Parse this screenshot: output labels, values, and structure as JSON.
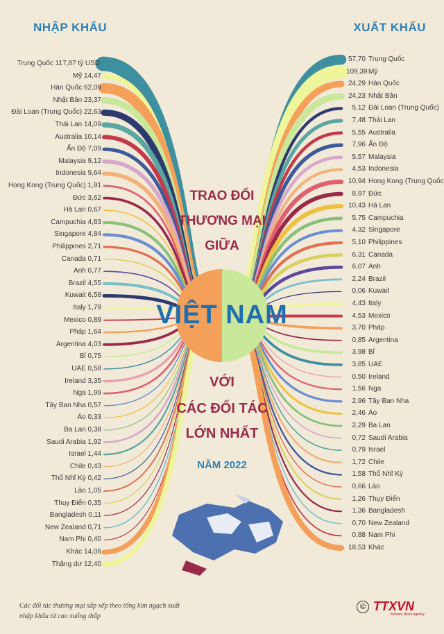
{
  "header": {
    "import_label": "NHẬP KHẨU",
    "export_label": "XUẤT KHẨU"
  },
  "title": {
    "line1": "TRAO ĐỔI",
    "line2": "THƯƠNG MẠI",
    "line3": "GIỮA",
    "line4": "VIỆT NAM",
    "line5": "VỚI",
    "line6": "CÁC ĐỐI TÁC",
    "line7": "LỚN NHẤT",
    "line8": "NĂM 2022"
  },
  "footnote": "Các đối tác thương mại sắp xếp theo tổng kim ngạch xuất nhập khẩu từ cao xuống thấp",
  "logo": {
    "text": "TTXVN",
    "sub": "Vietnam News Agency",
    "copyright": "©"
  },
  "colors": {
    "background": "#f2ead9",
    "teal": "#3e8fa0",
    "yellow": "#eef59a",
    "orange": "#f5a05a",
    "light_green": "#c9e89a",
    "navy": "#2d3a6e",
    "red": "#c43a4a",
    "title": "#9a2a4a",
    "blue": "#1f6fb0"
  },
  "chart_data": {
    "type": "flow",
    "unit": "tỷ USD",
    "imports": [
      {
        "partner": "Trung Quốc",
        "value": 117.87,
        "label": "Trung Quốc 117,87 tỷ USD",
        "color": "#3e8fa0"
      },
      {
        "partner": "Mỹ",
        "value": 14.47,
        "label": "Mỹ 14,47",
        "color": "#eef59a"
      },
      {
        "partner": "Hàn Quốc",
        "value": 62.09,
        "label": "Hàn Quốc 62,09",
        "color": "#f5a05a"
      },
      {
        "partner": "Nhật Bản",
        "value": 23.37,
        "label": "Nhật Bản 23,37",
        "color": "#c9e89a"
      },
      {
        "partner": "Đài Loan (Trung Quốc)",
        "value": 22.63,
        "label": "Đài Loan (Trung Quốc) 22,63",
        "color": "#2d3a6e"
      },
      {
        "partner": "Thái Lan",
        "value": 14.09,
        "label": "Thái Lan 14,09",
        "color": "#5aa6a0"
      },
      {
        "partner": "Australia",
        "value": 10.14,
        "label": "Australia 10,14",
        "color": "#c43a4a"
      },
      {
        "partner": "Ấn Độ",
        "value": 7.09,
        "label": "Ấn Độ 7,09",
        "color": "#3f5a9a"
      },
      {
        "partner": "Malaysia",
        "value": 9.12,
        "label": "Malaysia 9,12",
        "color": "#d7a8c8"
      },
      {
        "partner": "Indonesia",
        "value": 9.64,
        "label": "Indonesia 9,64",
        "color": "#f2b27a"
      },
      {
        "partner": "Hong Kong (Trung Quốc)",
        "value": 1.91,
        "label": "Hong Kong (Trung Quốc) 1,91",
        "color": "#e06070"
      },
      {
        "partner": "Đức",
        "value": 3.62,
        "label": "Đức 3,62",
        "color": "#9a2a4a"
      },
      {
        "partner": "Hà Lan",
        "value": 0.67,
        "label": "Hà Lan 0,67",
        "color": "#f0c040"
      },
      {
        "partner": "Campuchia",
        "value": 4.83,
        "label": "Campuchia 4,83",
        "color": "#8ac07a"
      },
      {
        "partner": "Singapore",
        "value": 4.84,
        "label": "Singapore 4,84",
        "color": "#6a8fd0"
      },
      {
        "partner": "Philippines",
        "value": 2.71,
        "label": "Philippines 2,71",
        "color": "#e07050"
      },
      {
        "partner": "Canada",
        "value": 0.71,
        "label": "Canada 0,71",
        "color": "#d9d060"
      },
      {
        "partner": "Anh",
        "value": 0.77,
        "label": "Anh 0,77",
        "color": "#5a4a9a"
      },
      {
        "partner": "Brazil",
        "value": 4.55,
        "label": "Brazil 4,55",
        "color": "#7ac0c8"
      },
      {
        "partner": "Kuwait",
        "value": 6.58,
        "label": "Kuwait 6,58",
        "color": "#2d3a6e"
      },
      {
        "partner": "Italy",
        "value": 1.79,
        "label": "Italy 1,79",
        "color": "#eef59a"
      },
      {
        "partner": "Mexico",
        "value": 0.89,
        "label": "Mexico 0,89",
        "color": "#c43a4a"
      },
      {
        "partner": "Pháp",
        "value": 1.64,
        "label": "Pháp 1,64",
        "color": "#f5a05a"
      },
      {
        "partner": "Argentina",
        "value": 4.03,
        "label": "Argentina 4,03",
        "color": "#9a2a4a"
      },
      {
        "partner": "Bỉ",
        "value": 0.75,
        "label": "Bỉ 0,75",
        "color": "#c9e89a"
      },
      {
        "partner": "UAE",
        "value": 0.58,
        "label": "UAE 0,58",
        "color": "#3e8fa0"
      },
      {
        "partner": "Ireland",
        "value": 3.35,
        "label": "Ireland 3,35",
        "color": "#e8a0b0"
      },
      {
        "partner": "Nga",
        "value": 1.99,
        "label": "Nga 1,99",
        "color": "#e06070"
      },
      {
        "partner": "Tây Ban Nha",
        "value": 0.57,
        "label": "Tây Ban Nha 0,57",
        "color": "#6a8fd0"
      },
      {
        "partner": "Áo",
        "value": 0.33,
        "label": "Áo 0,33",
        "color": "#f0c040"
      },
      {
        "partner": "Ba Lan",
        "value": 0.38,
        "label": "Ba Lan 0,38",
        "color": "#8ac07a"
      },
      {
        "partner": "Saudi Arabia",
        "value": 1.92,
        "label": "Saudi Arabia 1,92",
        "color": "#d7a8c8"
      },
      {
        "partner": "Israel",
        "value": 1.44,
        "label": "Israel 1,44",
        "color": "#5aa6a0"
      },
      {
        "partner": "Chile",
        "value": 0.43,
        "label": "Chile 0,43",
        "color": "#f2b27a"
      },
      {
        "partner": "Thổ Nhĩ Kỳ",
        "value": 0.42,
        "label": "Thổ Nhĩ Kỳ 0,42",
        "color": "#3f5a9a"
      },
      {
        "partner": "Lào",
        "value": 1.05,
        "label": "Lào 1,05",
        "color": "#e07050"
      },
      {
        "partner": "Thụy Điển",
        "value": 0.35,
        "label": "Thụy Điển 0,35",
        "color": "#d9d060"
      },
      {
        "partner": "Bangladesh",
        "value": 0.11,
        "label": "Bangladesh 0,11",
        "color": "#9a2a4a"
      },
      {
        "partner": "New Zealand",
        "value": 0.71,
        "label": "New Zealand 0,71",
        "color": "#7ac0c8"
      },
      {
        "partner": "Nam Phi",
        "value": 0.4,
        "label": "Nam Phi 0,40",
        "color": "#c43a4a"
      },
      {
        "partner": "Khác",
        "value": 14.06,
        "label": "Khác 14,06",
        "color": "#f5a05a"
      },
      {
        "partner": "Thặng dư",
        "value": 12.4,
        "label": "Thặng dư 12,40",
        "color": "#eef59a"
      }
    ],
    "exports": [
      {
        "partner": "Trung Quốc",
        "value": 57.7,
        "value_label": "57,70",
        "color": "#3e8fa0"
      },
      {
        "partner": "Mỹ",
        "value": 109.39,
        "value_label": "109,39",
        "color": "#eef59a"
      },
      {
        "partner": "Hàn Quốc",
        "value": 24.29,
        "value_label": "24,29",
        "color": "#f5a05a"
      },
      {
        "partner": "Nhật Bản",
        "value": 24.23,
        "value_label": "24,23",
        "color": "#c9e89a"
      },
      {
        "partner": "Đài Loan (Trung Quốc)",
        "value": 5.12,
        "value_label": "5,12",
        "color": "#2d3a6e"
      },
      {
        "partner": "Thái Lan",
        "value": 7.48,
        "value_label": "7,48",
        "color": "#5aa6a0"
      },
      {
        "partner": "Australia",
        "value": 5.55,
        "value_label": "5,55",
        "color": "#c43a4a"
      },
      {
        "partner": "Ấn Độ",
        "value": 7.96,
        "value_label": "7,96",
        "color": "#3f5a9a"
      },
      {
        "partner": "Malaysia",
        "value": 5.57,
        "value_label": "5,57",
        "color": "#d7a8c8"
      },
      {
        "partner": "Indonesia",
        "value": 4.53,
        "value_label": "4,53",
        "color": "#f2b27a"
      },
      {
        "partner": "Hong Kong (Trung Quốc)",
        "value": 10.94,
        "value_label": "10,94",
        "color": "#e06070"
      },
      {
        "partner": "Đức",
        "value": 8.97,
        "value_label": "8,97",
        "color": "#9a2a4a"
      },
      {
        "partner": "Hà Lan",
        "value": 10.43,
        "value_label": "10,43",
        "color": "#f0c040"
      },
      {
        "partner": "Campuchia",
        "value": 5.75,
        "value_label": "5,75",
        "color": "#8ac07a"
      },
      {
        "partner": "Singapore",
        "value": 4.32,
        "value_label": "4,32",
        "color": "#6a8fd0"
      },
      {
        "partner": "Philippines",
        "value": 5.1,
        "value_label": "5,10",
        "color": "#e07050"
      },
      {
        "partner": "Canada",
        "value": 6.31,
        "value_label": "6,31",
        "color": "#d9d060"
      },
      {
        "partner": "Anh",
        "value": 6.07,
        "value_label": "6,07",
        "color": "#5a4a9a"
      },
      {
        "partner": "Brazil",
        "value": 2.24,
        "value_label": "2,24",
        "color": "#7ac0c8"
      },
      {
        "partner": "Kuwait",
        "value": 0.06,
        "value_label": "0,06",
        "color": "#2d3a6e"
      },
      {
        "partner": "Italy",
        "value": 4.43,
        "value_label": "4,43",
        "color": "#eef59a"
      },
      {
        "partner": "Mexico",
        "value": 4.53,
        "value_label": "4,53",
        "color": "#c43a4a"
      },
      {
        "partner": "Pháp",
        "value": 3.7,
        "value_label": "3,70",
        "color": "#f5a05a"
      },
      {
        "partner": "Argentina",
        "value": 0.85,
        "value_label": "0,85",
        "color": "#9a2a4a"
      },
      {
        "partner": "Bỉ",
        "value": 3.98,
        "value_label": "3,98",
        "color": "#c9e89a"
      },
      {
        "partner": "UAE",
        "value": 3.85,
        "value_label": "3,85",
        "color": "#3e8fa0"
      },
      {
        "partner": "Ireland",
        "value": 0.5,
        "value_label": "0,50",
        "color": "#e8a0b0"
      },
      {
        "partner": "Nga",
        "value": 1.56,
        "value_label": "1,56",
        "color": "#e06070"
      },
      {
        "partner": "Tây Ban Nha",
        "value": 2.96,
        "value_label": "2,96",
        "color": "#6a8fd0"
      },
      {
        "partner": "Áo",
        "value": 2.46,
        "value_label": "2,46",
        "color": "#f0c040"
      },
      {
        "partner": "Ba Lan",
        "value": 2.29,
        "value_label": "2,29",
        "color": "#8ac07a"
      },
      {
        "partner": "Saudi Arabia",
        "value": 0.72,
        "value_label": "0,72",
        "color": "#d7a8c8"
      },
      {
        "partner": "Israel",
        "value": 0.79,
        "value_label": "0,79",
        "color": "#5aa6a0"
      },
      {
        "partner": "Chile",
        "value": 1.72,
        "value_label": "1,72",
        "color": "#f2b27a"
      },
      {
        "partner": "Thổ Nhĩ Kỳ",
        "value": 1.58,
        "value_label": "1,58",
        "color": "#3f5a9a"
      },
      {
        "partner": "Lào",
        "value": 0.66,
        "value_label": "0,66",
        "color": "#e07050"
      },
      {
        "partner": "Thụy Điển",
        "value": 1.26,
        "value_label": "1,26",
        "color": "#d9d060"
      },
      {
        "partner": "Bangladesh",
        "value": 1.36,
        "value_label": "1,36",
        "color": "#9a2a4a"
      },
      {
        "partner": "New Zealand",
        "value": 0.7,
        "value_label": "0,70",
        "color": "#7ac0c8"
      },
      {
        "partner": "Nam Phi",
        "value": 0.88,
        "value_label": "0,88",
        "color": "#c43a4a"
      },
      {
        "partner": "Khác",
        "value": 18.53,
        "value_label": "18,53",
        "color": "#f5a05a"
      }
    ]
  }
}
